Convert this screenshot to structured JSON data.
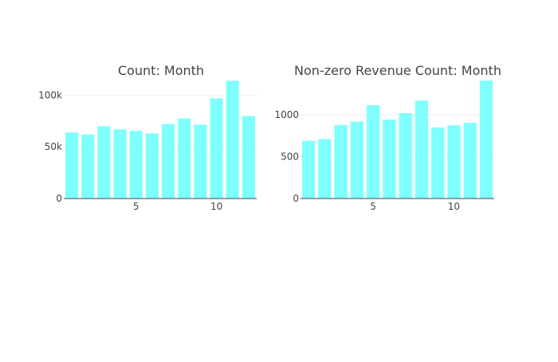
{
  "chart_data": [
    {
      "type": "bar",
      "title": "Count: Month",
      "xlabel": "",
      "ylabel": "",
      "x": [
        1,
        2,
        3,
        4,
        5,
        6,
        7,
        8,
        9,
        10,
        11,
        12
      ],
      "values": [
        64000,
        62000,
        70000,
        67000,
        65500,
        63000,
        72000,
        77500,
        71500,
        97000,
        114000,
        80000
      ],
      "xlim": [
        0.5,
        12.5
      ],
      "ylim": [
        0,
        115000
      ],
      "xticks": [
        5,
        10
      ],
      "xtick_labels": [
        "5",
        "10"
      ],
      "yticks": [
        0,
        50000,
        100000
      ],
      "ytick_labels": [
        "0",
        "50k",
        "100k"
      ],
      "grid": true,
      "color": "#7fffff"
    },
    {
      "type": "bar",
      "title": "Non-zero Revenue Count: Month",
      "xlabel": "",
      "ylabel": "",
      "x": [
        1,
        2,
        3,
        4,
        5,
        6,
        7,
        8,
        9,
        10,
        11,
        12
      ],
      "values": [
        690,
        710,
        880,
        920,
        1115,
        945,
        1020,
        1170,
        850,
        875,
        905,
        1410
      ],
      "xlim": [
        0.5,
        12.5
      ],
      "ylim": [
        0,
        1420
      ],
      "xticks": [
        5,
        10
      ],
      "xtick_labels": [
        "5",
        "10"
      ],
      "yticks": [
        0,
        500,
        1000
      ],
      "ytick_labels": [
        "0",
        "500",
        "1000"
      ],
      "grid": true,
      "color": "#7fffff"
    }
  ]
}
